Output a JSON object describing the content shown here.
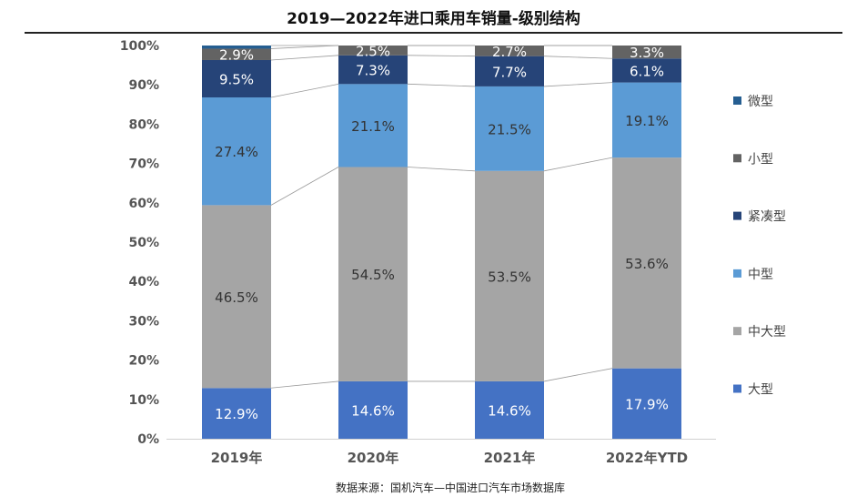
{
  "title": "2019—2022年进口乘用车销量-级别结构",
  "source": "数据来源：国机汽车—中国进口汽车市场数据库",
  "chart_data": {
    "type": "bar",
    "stacked": true,
    "percent": true,
    "title": "2019—2022年进口乘用车销量-级别结构",
    "xlabel": "",
    "ylabel": "",
    "ylim": [
      0,
      100
    ],
    "y_ticks": [
      "0%",
      "10%",
      "20%",
      "30%",
      "40%",
      "50%",
      "60%",
      "70%",
      "80%",
      "90%",
      "100%"
    ],
    "categories": [
      "2019年",
      "2020年",
      "2021年",
      "2022年YTD"
    ],
    "legend_position": "right",
    "grid": false,
    "series_lines": true,
    "series": [
      {
        "name": "大型",
        "color": "#4472C4",
        "label_color": "#ffffff",
        "values": [
          12.9,
          14.6,
          14.6,
          17.9
        ],
        "labels": [
          "12.9%",
          "14.6%",
          "14.6%",
          "17.9%"
        ]
      },
      {
        "name": "中大型",
        "color": "#A5A5A5",
        "label_color": "#333333",
        "values": [
          46.5,
          54.5,
          53.5,
          53.6
        ],
        "labels": [
          "46.5%",
          "54.5%",
          "53.5%",
          "53.6%"
        ]
      },
      {
        "name": "中型",
        "color": "#5B9BD5",
        "label_color": "#333333",
        "values": [
          27.4,
          21.1,
          21.5,
          19.1
        ],
        "labels": [
          "27.4%",
          "21.1%",
          "21.5%",
          "19.1%"
        ]
      },
      {
        "name": "紧凑型",
        "color": "#264478",
        "label_color": "#ffffff",
        "values": [
          9.5,
          7.3,
          7.7,
          6.1
        ],
        "labels": [
          "9.5%",
          "7.3%",
          "7.7%",
          "6.1%"
        ]
      },
      {
        "name": "小型",
        "color": "#636363",
        "label_color": "#ffffff",
        "values": [
          2.9,
          2.5,
          2.7,
          3.3
        ],
        "labels": [
          "2.9%",
          "2.5%",
          "2.7%",
          "3.3%"
        ]
      },
      {
        "name": "微型",
        "color": "#255E91",
        "label_color": "#ffffff",
        "values": [
          0.8,
          0.0,
          0.0,
          0.0
        ],
        "labels": [
          "",
          "",
          "",
          ""
        ]
      }
    ]
  }
}
